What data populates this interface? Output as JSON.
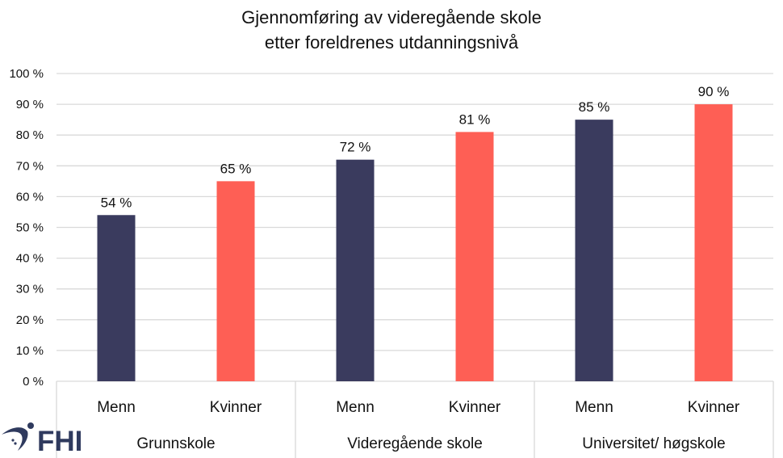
{
  "chart_data": {
    "type": "bar",
    "title": "Gjennomføring av videregående skole",
    "subtitle": "etter foreldrenes utdanningsnivå",
    "xlabel": "",
    "ylabel": "",
    "ylim": [
      0,
      100
    ],
    "yticks": [
      "0 %",
      "10 %",
      "20 %",
      "30 %",
      "40 %",
      "50 %",
      "60 %",
      "70 %",
      "80 %",
      "90 %",
      "100 %"
    ],
    "grid": true,
    "groups": [
      {
        "label": "Grunnskole",
        "categories": [
          "Menn",
          "Kvinner"
        ]
      },
      {
        "label": "Videregående skole",
        "categories": [
          "Menn",
          "Kvinner"
        ]
      },
      {
        "label": "Universitet/ høgskole",
        "categories": [
          "Menn",
          "Kvinner"
        ]
      }
    ],
    "categories": [
      "Menn",
      "Kvinner",
      "Menn",
      "Kvinner",
      "Menn",
      "Kvinner"
    ],
    "values": [
      54,
      65,
      72,
      81,
      85,
      90
    ],
    "data_labels": [
      "54 %",
      "65 %",
      "72 %",
      "81 %",
      "85 %",
      "90 %"
    ],
    "colors": {
      "Menn": "#3a3b5e",
      "Kvinner": "#fe5f55"
    }
  },
  "logo": {
    "text": "FHI",
    "color": "#2f3a5e"
  }
}
